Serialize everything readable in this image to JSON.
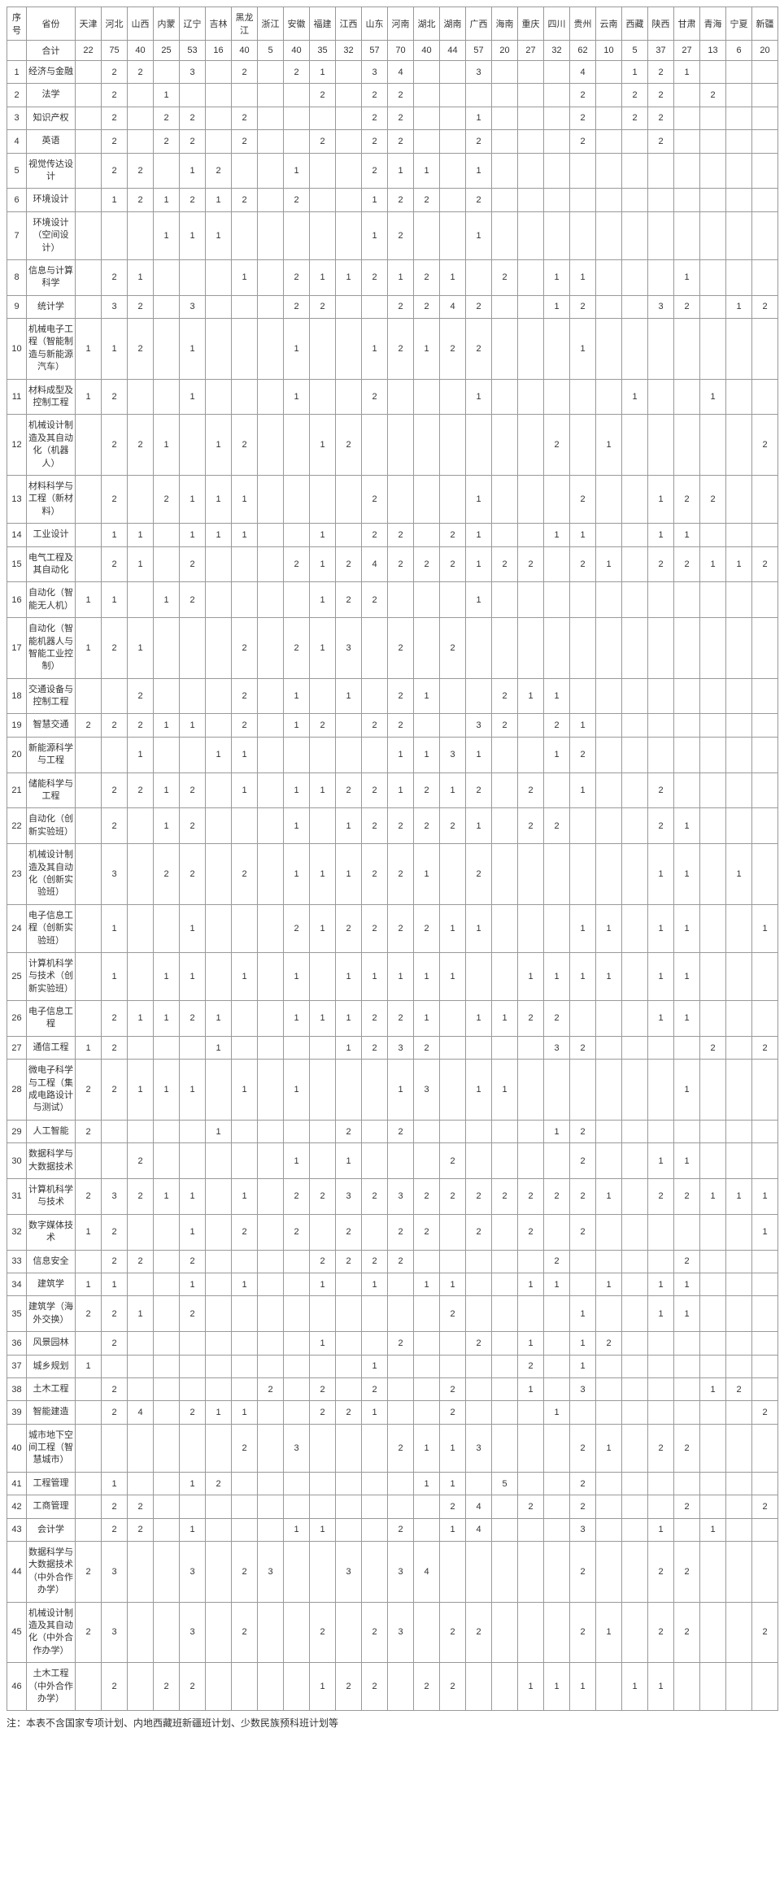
{
  "headers": {
    "idx": "序号",
    "province": "省份",
    "cols": [
      "天津",
      "河北",
      "山西",
      "内蒙",
      "辽宁",
      "吉林",
      "黑龙江",
      "浙江",
      "安徽",
      "福建",
      "江西",
      "山东",
      "河南",
      "湖北",
      "湖南",
      "广西",
      "海南",
      "重庆",
      "四川",
      "贵州",
      "云南",
      "西藏",
      "陕西",
      "甘肃",
      "青海",
      "宁夏",
      "新疆"
    ]
  },
  "totalRow": {
    "label": "合计",
    "values": [
      "22",
      "75",
      "40",
      "25",
      "53",
      "16",
      "40",
      "5",
      "40",
      "35",
      "32",
      "57",
      "70",
      "40",
      "44",
      "57",
      "20",
      "27",
      "32",
      "62",
      "10",
      "5",
      "37",
      "27",
      "13",
      "6",
      "20"
    ]
  },
  "rows": [
    {
      "idx": "1",
      "name": "经济与金融",
      "v": [
        "",
        "2",
        "2",
        "",
        "3",
        "",
        "2",
        "",
        "2",
        "1",
        "",
        "3",
        "4",
        "",
        "",
        "3",
        "",
        "",
        "",
        "4",
        "",
        "1",
        "2",
        "1",
        "",
        "",
        ""
      ]
    },
    {
      "idx": "2",
      "name": "法学",
      "v": [
        "",
        "2",
        "",
        "1",
        "",
        "",
        "",
        "",
        "",
        "2",
        "",
        "2",
        "2",
        "",
        "",
        "",
        "",
        "",
        "",
        "2",
        "",
        "2",
        "2",
        "",
        "2",
        "",
        ""
      ]
    },
    {
      "idx": "3",
      "name": "知识产权",
      "v": [
        "",
        "2",
        "",
        "2",
        "2",
        "",
        "2",
        "",
        "",
        "",
        "",
        "2",
        "2",
        "",
        "",
        "1",
        "",
        "",
        "",
        "2",
        "",
        "2",
        "2",
        "",
        "",
        "",
        ""
      ]
    },
    {
      "idx": "4",
      "name": "英语",
      "v": [
        "",
        "2",
        "",
        "2",
        "2",
        "",
        "2",
        "",
        "",
        "2",
        "",
        "2",
        "2",
        "",
        "",
        "2",
        "",
        "",
        "",
        "2",
        "",
        "",
        "2",
        "",
        "",
        "",
        ""
      ]
    },
    {
      "idx": "5",
      "name": "视觉传达设计",
      "v": [
        "",
        "2",
        "2",
        "",
        "1",
        "2",
        "",
        "",
        "1",
        "",
        "",
        "2",
        "1",
        "1",
        "",
        "1",
        "",
        "",
        "",
        "",
        "",
        "",
        "",
        "",
        "",
        "",
        ""
      ]
    },
    {
      "idx": "6",
      "name": "环境设计",
      "v": [
        "",
        "1",
        "2",
        "1",
        "2",
        "1",
        "2",
        "",
        "2",
        "",
        "",
        "1",
        "2",
        "2",
        "",
        "2",
        "",
        "",
        "",
        "",
        "",
        "",
        "",
        "",
        "",
        "",
        ""
      ]
    },
    {
      "idx": "7",
      "name": "环境设计（空间设计）",
      "v": [
        "",
        "",
        "",
        "1",
        "1",
        "1",
        "",
        "",
        "",
        "",
        "",
        "1",
        "2",
        "",
        "",
        "1",
        "",
        "",
        "",
        "",
        "",
        "",
        "",
        "",
        "",
        "",
        ""
      ]
    },
    {
      "idx": "8",
      "name": "信息与计算科学",
      "v": [
        "",
        "2",
        "1",
        "",
        "",
        "",
        "1",
        "",
        "2",
        "1",
        "1",
        "2",
        "1",
        "2",
        "1",
        "",
        "2",
        "",
        "1",
        "1",
        "",
        "",
        "",
        "1",
        "",
        "",
        ""
      ]
    },
    {
      "idx": "9",
      "name": "统计学",
      "v": [
        "",
        "3",
        "2",
        "",
        "3",
        "",
        "",
        "",
        "2",
        "2",
        "",
        "",
        "2",
        "2",
        "4",
        "2",
        "",
        "",
        "1",
        "2",
        "",
        "",
        "3",
        "2",
        "",
        "1",
        "2"
      ]
    },
    {
      "idx": "10",
      "name": "机械电子工程（智能制造与新能源汽车）",
      "v": [
        "1",
        "1",
        "2",
        "",
        "1",
        "",
        "",
        "",
        "1",
        "",
        "",
        "1",
        "2",
        "1",
        "2",
        "2",
        "",
        "",
        "",
        "1",
        "",
        "",
        "",
        "",
        "",
        "",
        ""
      ]
    },
    {
      "idx": "11",
      "name": "材料成型及控制工程",
      "v": [
        "1",
        "2",
        "",
        "",
        "1",
        "",
        "",
        "",
        "1",
        "",
        "",
        "2",
        "",
        "",
        "",
        "1",
        "",
        "",
        "",
        "",
        "",
        "1",
        "",
        "",
        "1",
        "",
        ""
      ]
    },
    {
      "idx": "12",
      "name": "机械设计制造及其自动化（机器人）",
      "v": [
        "",
        "2",
        "2",
        "1",
        "",
        "1",
        "2",
        "",
        "",
        "1",
        "2",
        "",
        "",
        "",
        "",
        "",
        "",
        "",
        "2",
        "",
        "1",
        "",
        "",
        "",
        "",
        "",
        "2"
      ]
    },
    {
      "idx": "13",
      "name": "材料科学与工程（新材料）",
      "v": [
        "",
        "2",
        "",
        "2",
        "1",
        "1",
        "1",
        "",
        "",
        "",
        "",
        "2",
        "",
        "",
        "",
        "1",
        "",
        "",
        "",
        "2",
        "",
        "",
        "1",
        "2",
        "2",
        "",
        ""
      ]
    },
    {
      "idx": "14",
      "name": "工业设计",
      "v": [
        "",
        "1",
        "1",
        "",
        "1",
        "1",
        "1",
        "",
        "",
        "1",
        "",
        "2",
        "2",
        "",
        "2",
        "1",
        "",
        "",
        "1",
        "1",
        "",
        "",
        "1",
        "1",
        "",
        "",
        ""
      ]
    },
    {
      "idx": "15",
      "name": "电气工程及其自动化",
      "v": [
        "",
        "2",
        "1",
        "",
        "2",
        "",
        "",
        "",
        "2",
        "1",
        "2",
        "4",
        "2",
        "2",
        "2",
        "1",
        "2",
        "2",
        "",
        "2",
        "1",
        "",
        "2",
        "2",
        "1",
        "1",
        "2"
      ]
    },
    {
      "idx": "16",
      "name": "自动化（智能无人机）",
      "v": [
        "1",
        "1",
        "",
        "1",
        "2",
        "",
        "",
        "",
        "",
        "1",
        "2",
        "2",
        "",
        "",
        "",
        "1",
        "",
        "",
        "",
        "",
        "",
        "",
        "",
        "",
        "",
        "",
        ""
      ]
    },
    {
      "idx": "17",
      "name": "自动化（智能机器人与智能工业控制）",
      "v": [
        "1",
        "2",
        "1",
        "",
        "",
        "",
        "2",
        "",
        "2",
        "1",
        "3",
        "",
        "2",
        "",
        "2",
        "",
        "",
        "",
        "",
        "",
        "",
        "",
        "",
        "",
        "",
        "",
        ""
      ]
    },
    {
      "idx": "18",
      "name": "交通设备与控制工程",
      "v": [
        "",
        "",
        "2",
        "",
        "",
        "",
        "2",
        "",
        "1",
        "",
        "1",
        "",
        "2",
        "1",
        "",
        "",
        "2",
        "1",
        "1",
        "",
        "",
        "",
        "",
        "",
        "",
        "",
        ""
      ]
    },
    {
      "idx": "19",
      "name": "智慧交通",
      "v": [
        "2",
        "2",
        "2",
        "1",
        "1",
        "",
        "2",
        "",
        "1",
        "2",
        "",
        "2",
        "2",
        "",
        "",
        "3",
        "2",
        "",
        "2",
        "1",
        "",
        "",
        "",
        "",
        "",
        "",
        ""
      ]
    },
    {
      "idx": "20",
      "name": "新能源科学与工程",
      "v": [
        "",
        "",
        "1",
        "",
        "",
        "1",
        "1",
        "",
        "",
        "",
        "",
        "",
        "1",
        "1",
        "3",
        "1",
        "",
        "",
        "1",
        "2",
        "",
        "",
        "",
        "",
        "",
        "",
        ""
      ]
    },
    {
      "idx": "21",
      "name": "储能科学与工程",
      "v": [
        "",
        "2",
        "2",
        "1",
        "2",
        "",
        "1",
        "",
        "1",
        "1",
        "2",
        "2",
        "1",
        "2",
        "1",
        "2",
        "",
        "2",
        "",
        "1",
        "",
        "",
        "2",
        "",
        "",
        "",
        ""
      ]
    },
    {
      "idx": "22",
      "name": "自动化（创新实验班）",
      "v": [
        "",
        "2",
        "",
        "1",
        "2",
        "",
        "",
        "",
        "1",
        "",
        "1",
        "2",
        "2",
        "2",
        "2",
        "1",
        "",
        "2",
        "2",
        "",
        "",
        "",
        "2",
        "1",
        "",
        "",
        ""
      ]
    },
    {
      "idx": "23",
      "name": "机械设计制造及其自动化（创新实验班）",
      "v": [
        "",
        "3",
        "",
        "2",
        "2",
        "",
        "2",
        "",
        "1",
        "1",
        "1",
        "2",
        "2",
        "1",
        "",
        "2",
        "",
        "",
        "",
        "",
        "",
        "",
        "1",
        "1",
        "",
        "1",
        ""
      ]
    },
    {
      "idx": "24",
      "name": "电子信息工程（创新实验班）",
      "v": [
        "",
        "1",
        "",
        "",
        "1",
        "",
        "",
        "",
        "2",
        "1",
        "2",
        "2",
        "2",
        "2",
        "1",
        "1",
        "",
        "",
        "",
        "1",
        "1",
        "",
        "1",
        "1",
        "",
        "",
        "1"
      ]
    },
    {
      "idx": "25",
      "name": "计算机科学与技术（创新实验班）",
      "v": [
        "",
        "1",
        "",
        "1",
        "1",
        "",
        "1",
        "",
        "1",
        "",
        "1",
        "1",
        "1",
        "1",
        "1",
        "",
        "",
        "1",
        "1",
        "1",
        "1",
        "",
        "1",
        "1",
        "",
        "",
        ""
      ]
    },
    {
      "idx": "26",
      "name": "电子信息工程",
      "v": [
        "",
        "2",
        "1",
        "1",
        "2",
        "1",
        "",
        "",
        "1",
        "1",
        "1",
        "2",
        "2",
        "1",
        "",
        "1",
        "1",
        "2",
        "2",
        "",
        "",
        "",
        "1",
        "1",
        "",
        "",
        ""
      ]
    },
    {
      "idx": "27",
      "name": "通信工程",
      "v": [
        "1",
        "2",
        "",
        "",
        "",
        "1",
        "",
        "",
        "",
        "",
        "1",
        "2",
        "3",
        "2",
        "",
        "",
        "",
        "",
        "3",
        "2",
        "",
        "",
        "",
        "",
        "2",
        "",
        "2"
      ]
    },
    {
      "idx": "28",
      "name": "微电子科学与工程（集成电路设计与测试）",
      "v": [
        "2",
        "2",
        "1",
        "1",
        "1",
        "",
        "1",
        "",
        "1",
        "",
        "",
        "",
        "1",
        "3",
        "",
        "1",
        "1",
        "",
        "",
        "",
        "",
        "",
        "",
        "1",
        "",
        "",
        ""
      ]
    },
    {
      "idx": "29",
      "name": "人工智能",
      "v": [
        "2",
        "",
        "",
        "",
        "",
        "1",
        "",
        "",
        "",
        "",
        "2",
        "",
        "2",
        "",
        "",
        "",
        "",
        "",
        "1",
        "2",
        "",
        "",
        "",
        "",
        "",
        "",
        ""
      ]
    },
    {
      "idx": "30",
      "name": "数据科学与大数据技术",
      "v": [
        "",
        "",
        "2",
        "",
        "",
        "",
        "",
        "",
        "1",
        "",
        "1",
        "",
        "",
        "",
        "2",
        "",
        "",
        "",
        "",
        "2",
        "",
        "",
        "1",
        "1",
        "",
        "",
        ""
      ]
    },
    {
      "idx": "31",
      "name": "计算机科学与技术",
      "v": [
        "2",
        "3",
        "2",
        "1",
        "1",
        "",
        "1",
        "",
        "2",
        "2",
        "3",
        "2",
        "3",
        "2",
        "2",
        "2",
        "2",
        "2",
        "2",
        "2",
        "1",
        "",
        "2",
        "2",
        "1",
        "1",
        "1"
      ]
    },
    {
      "idx": "32",
      "name": "数字媒体技术",
      "v": [
        "1",
        "2",
        "",
        "",
        "1",
        "",
        "2",
        "",
        "2",
        "",
        "2",
        "",
        "2",
        "2",
        "",
        "2",
        "",
        "2",
        "",
        "2",
        "",
        "",
        "",
        "",
        "",
        "",
        "1"
      ]
    },
    {
      "idx": "33",
      "name": "信息安全",
      "v": [
        "",
        "2",
        "2",
        "",
        "2",
        "",
        "",
        "",
        "",
        "2",
        "2",
        "2",
        "2",
        "",
        "",
        "",
        "",
        "",
        "2",
        "",
        "",
        "",
        "",
        "2",
        "",
        "",
        ""
      ]
    },
    {
      "idx": "34",
      "name": "建筑学",
      "v": [
        "1",
        "1",
        "",
        "",
        "1",
        "",
        "1",
        "",
        "",
        "1",
        "",
        "1",
        "",
        "1",
        "1",
        "",
        "",
        "1",
        "1",
        "",
        "1",
        "",
        "1",
        "1",
        "",
        "",
        ""
      ]
    },
    {
      "idx": "35",
      "name": "建筑学（海外交换）",
      "v": [
        "2",
        "2",
        "1",
        "",
        "2",
        "",
        "",
        "",
        "",
        "",
        "",
        "",
        "",
        "",
        "2",
        "",
        "",
        "",
        "",
        "1",
        "",
        "",
        "1",
        "1",
        "",
        "",
        ""
      ]
    },
    {
      "idx": "36",
      "name": "风景园林",
      "v": [
        "",
        "2",
        "",
        "",
        "",
        "",
        "",
        "",
        "",
        "1",
        "",
        "",
        "2",
        "",
        "",
        "2",
        "",
        "1",
        "",
        "1",
        "2",
        "",
        "",
        "",
        "",
        "",
        ""
      ]
    },
    {
      "idx": "37",
      "name": "城乡规划",
      "v": [
        "1",
        "",
        "",
        "",
        "",
        "",
        "",
        "",
        "",
        "",
        "",
        "1",
        "",
        "",
        "",
        "",
        "",
        "2",
        "",
        "1",
        "",
        "",
        "",
        "",
        "",
        "",
        ""
      ]
    },
    {
      "idx": "38",
      "name": "土木工程",
      "v": [
        "",
        "2",
        "",
        "",
        "",
        "",
        "",
        "2",
        "",
        "2",
        "",
        "2",
        "",
        "",
        "2",
        "",
        "",
        "1",
        "",
        "3",
        "",
        "",
        "",
        "",
        "1",
        "2",
        ""
      ]
    },
    {
      "idx": "39",
      "name": "智能建造",
      "v": [
        "",
        "2",
        "4",
        "",
        "2",
        "1",
        "1",
        "",
        "",
        "2",
        "2",
        "1",
        "",
        "",
        "2",
        "",
        "",
        "",
        "1",
        "",
        "",
        "",
        "",
        "",
        "",
        "",
        "2"
      ]
    },
    {
      "idx": "40",
      "name": "城市地下空间工程（智慧城市）",
      "v": [
        "",
        "",
        "",
        "",
        "",
        "",
        "2",
        "",
        "3",
        "",
        "",
        "",
        "2",
        "1",
        "1",
        "3",
        "",
        "",
        "",
        "2",
        "1",
        "",
        "2",
        "2",
        "",
        "",
        ""
      ]
    },
    {
      "idx": "41",
      "name": "工程管理",
      "v": [
        "",
        "1",
        "",
        "",
        "1",
        "2",
        "",
        "",
        "",
        "",
        "",
        "",
        "",
        "1",
        "1",
        "",
        "5",
        "",
        "",
        "2",
        "",
        "",
        "",
        "",
        "",
        "",
        ""
      ]
    },
    {
      "idx": "42",
      "name": "工商管理",
      "v": [
        "",
        "2",
        "2",
        "",
        "",
        "",
        "",
        "",
        "",
        "",
        "",
        "",
        "",
        "",
        "2",
        "4",
        "",
        "2",
        "",
        "2",
        "",
        "",
        "",
        "2",
        "",
        "",
        "2"
      ]
    },
    {
      "idx": "43",
      "name": "会计学",
      "v": [
        "",
        "2",
        "2",
        "",
        "1",
        "",
        "",
        "",
        "1",
        "1",
        "",
        "",
        "2",
        "",
        "1",
        "4",
        "",
        "",
        "",
        "3",
        "",
        "",
        "1",
        "",
        "1",
        "",
        ""
      ]
    },
    {
      "idx": "44",
      "name": "数据科学与大数据技术（中外合作办学）",
      "v": [
        "2",
        "3",
        "",
        "",
        "3",
        "",
        "2",
        "3",
        "",
        "",
        "3",
        "",
        "3",
        "4",
        "",
        "",
        "",
        "",
        "",
        "2",
        "",
        "",
        "2",
        "2",
        "",
        "",
        ""
      ]
    },
    {
      "idx": "45",
      "name": "机械设计制造及其自动化（中外合作办学）",
      "v": [
        "2",
        "3",
        "",
        "",
        "3",
        "",
        "2",
        "",
        "",
        "2",
        "",
        "2",
        "3",
        "",
        "2",
        "2",
        "",
        "",
        "",
        "2",
        "1",
        "",
        "2",
        "2",
        "",
        "",
        "2"
      ]
    },
    {
      "idx": "46",
      "name": "土木工程（中外合作办学）",
      "v": [
        "",
        "2",
        "",
        "2",
        "2",
        "",
        "",
        "",
        "",
        "1",
        "2",
        "2",
        "",
        "2",
        "2",
        "",
        "",
        "1",
        "1",
        "1",
        "",
        "1",
        "1",
        "",
        "",
        "",
        ""
      ]
    }
  ],
  "footnote": "注：本表不含国家专项计划、内地西藏班新疆班计划、少数民族预科班计划等"
}
